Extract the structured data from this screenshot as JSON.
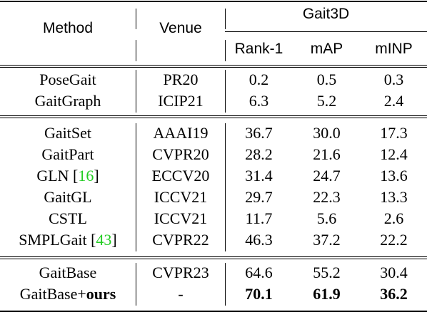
{
  "header": {
    "method": "Method",
    "venue": "Venue",
    "group": "Gait3D",
    "metrics": [
      "Rank-1",
      "mAP",
      "mINP"
    ]
  },
  "groups": [
    {
      "rows": [
        {
          "method": "PoseGait",
          "ref": "",
          "venue": "PR20",
          "rank1": "0.2",
          "map": "0.5",
          "minp": "0.3"
        },
        {
          "method": "GaitGraph",
          "ref": "",
          "venue": "ICIP21",
          "rank1": "6.3",
          "map": "5.2",
          "minp": "2.4"
        }
      ]
    },
    {
      "rows": [
        {
          "method": "GaitSet",
          "ref": "",
          "venue": "AAAI19",
          "rank1": "36.7",
          "map": "30.0",
          "minp": "17.3"
        },
        {
          "method": "GaitPart",
          "ref": "",
          "venue": "CVPR20",
          "rank1": "28.2",
          "map": "21.6",
          "minp": "12.4"
        },
        {
          "method": "GLN",
          "ref": "16",
          "venue": "ECCV20",
          "rank1": "31.4",
          "map": "24.7",
          "minp": "13.6"
        },
        {
          "method": "GaitGL",
          "ref": "",
          "venue": "ICCV21",
          "rank1": "29.7",
          "map": "22.3",
          "minp": "13.3"
        },
        {
          "method": "CSTL",
          "ref": "",
          "venue": "ICCV21",
          "rank1": "11.7",
          "map": "5.6",
          "minp": "2.6"
        },
        {
          "method": "SMPLGait",
          "ref": "43",
          "venue": "CVPR22",
          "rank1": "46.3",
          "map": "37.2",
          "minp": "22.2"
        }
      ]
    },
    {
      "rows": [
        {
          "method": "GaitBase",
          "ref": "",
          "venue": "CVPR23",
          "rank1": "64.6",
          "map": "55.2",
          "minp": "30.4"
        },
        {
          "method": "GaitBase+",
          "method_bold": "ours",
          "ref": "",
          "venue": "-",
          "rank1": "70.1",
          "map": "61.9",
          "minp": "36.2",
          "bold": true
        }
      ]
    }
  ]
}
